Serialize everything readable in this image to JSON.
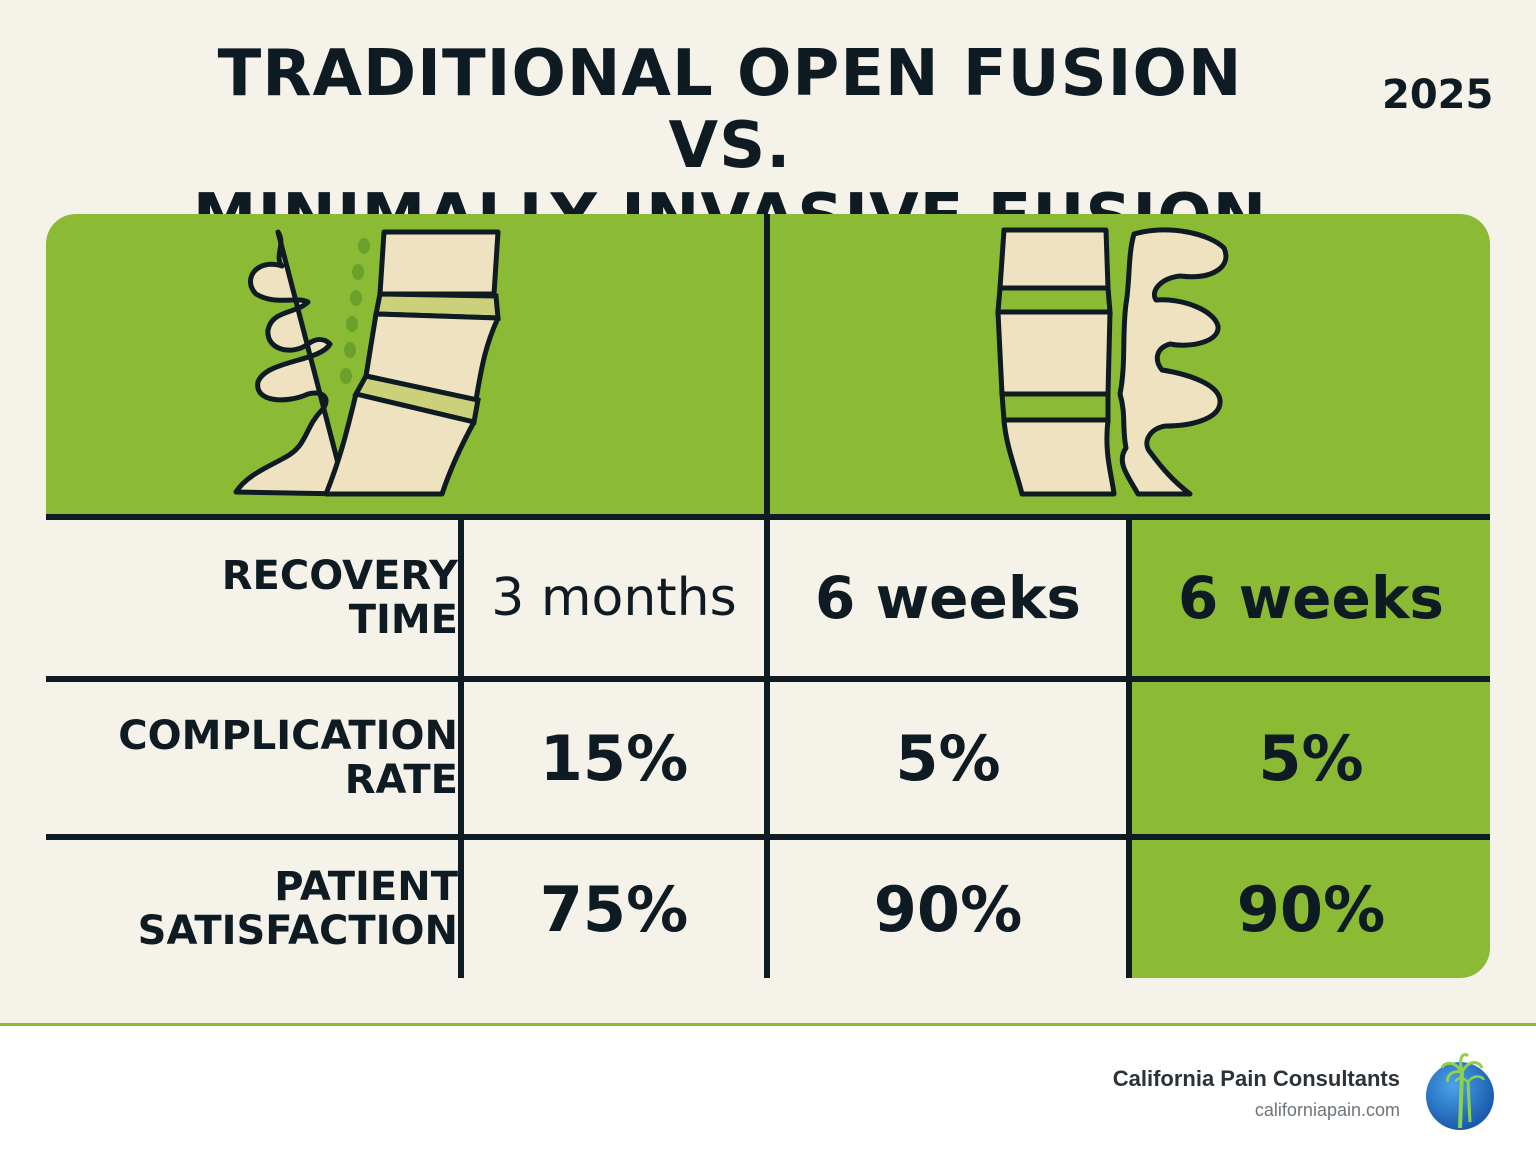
{
  "header": {
    "title_line1": "TRADITIONAL OPEN FUSION VS.",
    "title_line2": "MINIMALLY INVASIVE FUSION",
    "year": "2025"
  },
  "table": {
    "rows": [
      {
        "label_line1": "RECOVERY",
        "label_line2": "TIME",
        "values": [
          "3 months",
          "6 weeks",
          "6 weeks"
        ]
      },
      {
        "label_line1": "COMPLICATION",
        "label_line2": "RATE",
        "values": [
          "15%",
          "5%",
          "5%"
        ]
      },
      {
        "label_line1": "PATIENT",
        "label_line2": "SATISFACTION",
        "values": [
          "75%",
          "90%",
          "90%"
        ]
      }
    ]
  },
  "illustrations": {
    "left_icon": "spine-open-fusion-icon",
    "right_icon": "spine-minimally-invasive-icon"
  },
  "footer": {
    "company": "California Pain Consultants",
    "url": "californiapain.com",
    "logo_icon": "palm-tree-globe-icon"
  },
  "colors": {
    "accent_green": "#8bba34",
    "background": "#f5f2ea",
    "ink": "#0f1b22"
  }
}
